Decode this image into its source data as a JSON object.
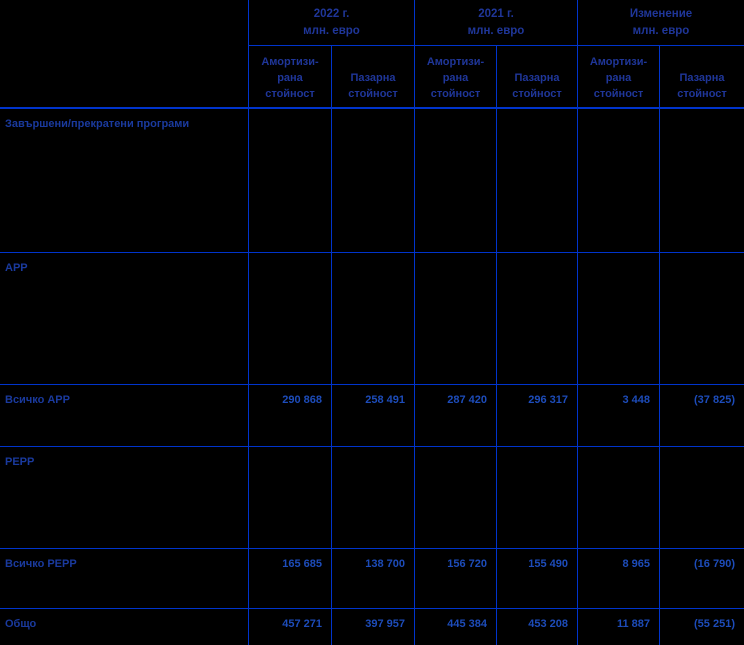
{
  "header": {
    "groups": [
      {
        "period": "2022 г.",
        "unit": "млн. евро"
      },
      {
        "period": "2021 г.",
        "unit": "млн. евро"
      },
      {
        "period": "Изменение",
        "unit": "млн. евро"
      }
    ],
    "subcolumns": {
      "amortized_lines": [
        "Амортизи-",
        "рана",
        "стойност"
      ],
      "market_lines": [
        "Пазарна",
        "стойност"
      ]
    }
  },
  "rows": [
    {
      "label": "Завършени/прекратени програми",
      "values": [
        "",
        "",
        "",
        "",
        "",
        ""
      ]
    },
    {
      "label": "APP",
      "values": [
        "",
        "",
        "",
        "",
        "",
        ""
      ]
    },
    {
      "label": "Всичко APP",
      "values": [
        "290 868",
        "258 491",
        "287 420",
        "296 317",
        "3 448",
        "(37 825)"
      ]
    },
    {
      "label": "PEPP",
      "values": [
        "",
        "",
        "",
        "",
        "",
        ""
      ]
    },
    {
      "label": "Всичко PEPP",
      "values": [
        "165 685",
        "138 700",
        "156 720",
        "155 490",
        "8 965",
        "(16 790)"
      ]
    },
    {
      "label": "Общо",
      "values": [
        "457 271",
        "397 957",
        "445 384",
        "453 208",
        "11 887",
        "(55 251)"
      ]
    }
  ],
  "colors": {
    "background": "#000000",
    "border": "#0034cc",
    "header_text": "#1f3699",
    "label_text": "#1a3a9e",
    "number_text": "#1d4cba"
  },
  "chart_data": {
    "type": "table",
    "unit": "млн. евро",
    "columns": [
      "",
      "2022 г. Амортизирана стойност",
      "2022 г. Пазарна стойност",
      "2021 г. Амортизирана стойност",
      "2021 г. Пазарна стойност",
      "Изменение Амортизирана стойност",
      "Изменение Пазарна стойност"
    ],
    "rows": [
      [
        "Завършени/прекратени програми",
        null,
        null,
        null,
        null,
        null,
        null
      ],
      [
        "APP",
        null,
        null,
        null,
        null,
        null,
        null
      ],
      [
        "Всичко APP",
        290868,
        258491,
        287420,
        296317,
        3448,
        -37825
      ],
      [
        "PEPP",
        null,
        null,
        null,
        null,
        null,
        null
      ],
      [
        "Всичко PEPP",
        165685,
        138700,
        156720,
        155490,
        8965,
        -16790
      ],
      [
        "Общо",
        457271,
        397957,
        445384,
        453208,
        11887,
        -55251
      ]
    ]
  }
}
